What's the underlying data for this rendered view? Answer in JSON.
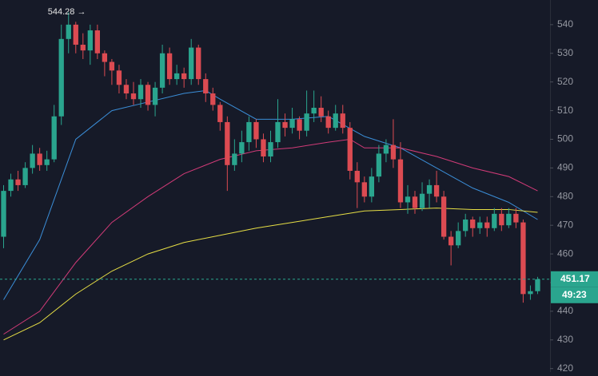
{
  "chart_data": {
    "type": "candlestick",
    "background": "#161a28",
    "up_color": "#2aa58e",
    "down_color": "#dc4b52",
    "xlim": [
      -0.5,
      75.5
    ],
    "ylim": [
      418.8,
      548.6
    ],
    "yticks": [
      420,
      430,
      440,
      450,
      460,
      470,
      480,
      490,
      500,
      510,
      520,
      530,
      540
    ],
    "open": [
      466,
      482,
      486,
      484,
      490,
      495,
      491,
      493,
      508,
      535,
      540,
      533,
      531,
      538,
      530,
      527,
      524,
      519,
      516,
      514,
      519,
      512,
      518,
      530,
      521,
      523,
      521,
      532,
      521,
      516,
      512,
      506,
      491,
      495,
      499,
      506,
      500,
      494,
      499,
      506,
      504,
      507,
      503,
      509,
      511,
      508,
      504,
      509,
      504,
      489,
      485,
      480,
      487,
      495,
      498,
      493,
      478,
      480,
      476,
      481,
      484,
      480,
      466,
      463,
      468,
      472,
      469,
      471,
      469,
      474,
      470,
      474,
      471,
      446,
      447
    ],
    "high": [
      484,
      488,
      489,
      492,
      498,
      497,
      496,
      512,
      540,
      544.28,
      541,
      537,
      540,
      540,
      531,
      528,
      526,
      521,
      520,
      521,
      520,
      520,
      533,
      532,
      526,
      525,
      535,
      533,
      523,
      518,
      513,
      508,
      500,
      503,
      508,
      507,
      502,
      503,
      514,
      509,
      511,
      508,
      517,
      517,
      515,
      510,
      512,
      512,
      506,
      492,
      487,
      490,
      498,
      500,
      507,
      499,
      484,
      482,
      485,
      486,
      489,
      482,
      468,
      471,
      474,
      473,
      473,
      473,
      476,
      476,
      476,
      476,
      472,
      449,
      452
    ],
    "low": [
      462,
      480,
      482,
      483,
      488,
      489,
      489,
      492,
      505,
      530,
      530,
      528,
      526,
      528,
      522,
      519,
      516,
      514,
      512,
      511,
      510,
      508,
      516,
      519,
      519,
      518,
      519,
      519,
      513,
      510,
      503,
      482,
      489,
      492,
      496,
      497,
      492,
      492,
      497,
      501,
      502,
      500,
      501,
      506,
      506,
      502,
      503,
      502,
      486,
      476,
      478,
      478,
      485,
      492,
      490,
      476,
      474,
      474,
      475,
      476,
      478,
      465,
      456,
      462,
      466,
      466,
      467,
      466,
      468,
      468,
      469,
      469,
      443,
      444,
      446
    ],
    "close": [
      482,
      486,
      484,
      490,
      495,
      491,
      493,
      508,
      535,
      540,
      533,
      531,
      538,
      530,
      527,
      524,
      519,
      516,
      514,
      519,
      512,
      518,
      530,
      521,
      523,
      521,
      532,
      521,
      516,
      512,
      506,
      491,
      495,
      499,
      506,
      500,
      494,
      499,
      506,
      504,
      507,
      503,
      509,
      511,
      508,
      504,
      509,
      504,
      489,
      485,
      480,
      487,
      495,
      498,
      493,
      478,
      480,
      476,
      481,
      484,
      480,
      466,
      463,
      468,
      472,
      469,
      471,
      469,
      474,
      470,
      474,
      471,
      446,
      447,
      451.17
    ],
    "high_label": "544.28 →",
    "countdown": "49:23",
    "series": [
      {
        "color": "#3b8ed8",
        "x": [
          0,
          5,
          10,
          15,
          20,
          25,
          28,
          30,
          35,
          40,
          45,
          50,
          55,
          60,
          65,
          70,
          74
        ],
        "values": [
          444,
          465,
          500,
          510,
          513,
          516,
          517,
          514,
          507,
          507,
          508,
          501,
          497,
          490,
          483,
          478,
          472
        ]
      },
      {
        "color": "#d23b78",
        "x": [
          0,
          5,
          10,
          15,
          20,
          25,
          30,
          35,
          40,
          45,
          48,
          50,
          55,
          60,
          65,
          70,
          74
        ],
        "values": [
          432,
          440,
          457,
          471,
          480,
          488,
          493,
          496,
          497,
          499,
          500,
          497,
          497,
          494,
          490,
          487,
          482
        ]
      },
      {
        "color": "#e6de45",
        "x": [
          0,
          5,
          10,
          15,
          20,
          25,
          30,
          35,
          40,
          45,
          50,
          55,
          60,
          65,
          70,
          74
        ],
        "values": [
          430,
          436,
          446,
          454,
          460,
          464,
          466.5,
          469,
          471,
          473,
          475,
          475.5,
          476,
          475.5,
          475.5,
          474.5
        ]
      }
    ]
  }
}
